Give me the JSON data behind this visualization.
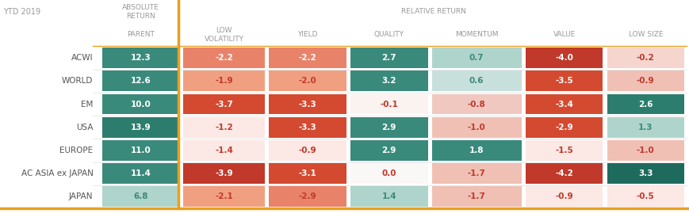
{
  "rows": [
    "ACWI",
    "WORLD",
    "EM",
    "USA",
    "EUROPE",
    "AC ASIA ex JAPAN",
    "JAPAN"
  ],
  "values": [
    [
      12.3,
      -2.2,
      -2.2,
      2.7,
      0.7,
      -4.0,
      -0.2
    ],
    [
      12.6,
      -1.9,
      -2.0,
      3.2,
      0.6,
      -3.5,
      -0.9
    ],
    [
      10.0,
      -3.7,
      -3.3,
      -0.1,
      -0.8,
      -3.4,
      2.6
    ],
    [
      13.9,
      -1.2,
      -3.3,
      2.9,
      -1.0,
      -2.9,
      1.3
    ],
    [
      11.0,
      -1.4,
      -0.9,
      2.9,
      1.8,
      -1.5,
      -1.0
    ],
    [
      11.4,
      -3.9,
      -3.1,
      0.0,
      -1.7,
      -4.2,
      3.3
    ],
    [
      6.8,
      -2.1,
      -2.9,
      1.4,
      -1.7,
      -0.9,
      -0.5
    ]
  ],
  "cell_colors": [
    [
      "#3a8a7c",
      "#e8836a",
      "#e8836a",
      "#3a8a7c",
      "#afd4cc",
      "#c0392b",
      "#f5d5cd"
    ],
    [
      "#3a8a7c",
      "#f0a080",
      "#f0a080",
      "#3a8a7c",
      "#c8e0db",
      "#d44a30",
      "#f0c0b5"
    ],
    [
      "#3a8a7c",
      "#d44a30",
      "#d44a30",
      "#faf3f0",
      "#f0c8c0",
      "#d44a30",
      "#2d7d6e"
    ],
    [
      "#2d7d6e",
      "#fce8e4",
      "#d44a30",
      "#3a8a7c",
      "#f0c0b5",
      "#d44a30",
      "#afd4cc"
    ],
    [
      "#3a8a7c",
      "#fce8e4",
      "#fce8e4",
      "#3a8a7c",
      "#3a8a7c",
      "#fce8e4",
      "#f0c0b5"
    ],
    [
      "#3a8a7c",
      "#c0392b",
      "#d44a30",
      "#faf8f7",
      "#f0c0b5",
      "#c0392b",
      "#1e6b5e"
    ],
    [
      "#afd4cc",
      "#f0a080",
      "#e8836a",
      "#afd4cc",
      "#f0c0b5",
      "#fce8e4",
      "#fce8e4"
    ]
  ],
  "text_colors": [
    [
      "#ffffff",
      "#ffffff",
      "#ffffff",
      "#ffffff",
      "#3a8a7c",
      "#ffffff",
      "#c0392b"
    ],
    [
      "#ffffff",
      "#c0392b",
      "#c0392b",
      "#ffffff",
      "#3a8a7c",
      "#ffffff",
      "#c0392b"
    ],
    [
      "#ffffff",
      "#ffffff",
      "#ffffff",
      "#c0392b",
      "#c0392b",
      "#ffffff",
      "#ffffff"
    ],
    [
      "#ffffff",
      "#c0392b",
      "#ffffff",
      "#ffffff",
      "#c0392b",
      "#ffffff",
      "#3a8a7c"
    ],
    [
      "#ffffff",
      "#c0392b",
      "#c0392b",
      "#ffffff",
      "#ffffff",
      "#c0392b",
      "#c0392b"
    ],
    [
      "#ffffff",
      "#ffffff",
      "#ffffff",
      "#c0392b",
      "#c0392b",
      "#ffffff",
      "#ffffff"
    ],
    [
      "#3a8a7c",
      "#c0392b",
      "#c0392b",
      "#3a8a7c",
      "#c0392b",
      "#c0392b",
      "#c0392b"
    ]
  ],
  "col_header_labels": [
    "PARENT",
    "LOW\nVOLATILITY",
    "YIELD",
    "QUALITY",
    "MOMENTUM",
    "VALUE",
    "LOW SIZE"
  ],
  "top_label": "YTD 2019",
  "top_header_absolute": "ABSOLUTE\nRETURN",
  "top_header_relative": "RELATIVE RETURN",
  "divider_color": "#e8a020",
  "background_color": "#ffffff",
  "header_text_color": "#999999",
  "row_label_color": "#555555",
  "figsize": [
    8.7,
    2.74
  ],
  "dpi": 100
}
